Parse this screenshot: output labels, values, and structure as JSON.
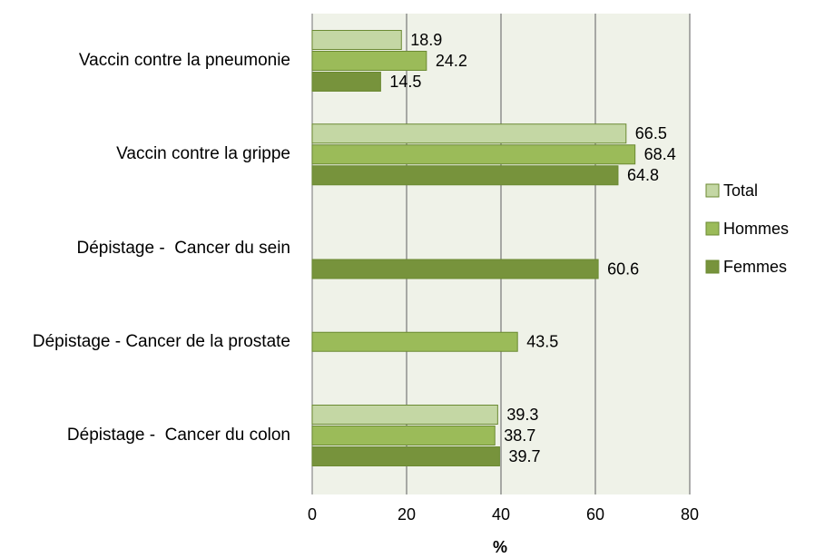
{
  "chart_data": {
    "type": "bar",
    "orientation": "horizontal",
    "x_label": "%",
    "categories": [
      "Vaccin contre la pneumonie",
      "Vaccin contre la grippe",
      "Dépistage -  Cancer du sein",
      "Dépistage - Cancer de la prostate",
      "Dépistage -  Cancer du colon"
    ],
    "series": [
      {
        "name": "Total",
        "color": "#c4d7a4",
        "values": [
          18.9,
          66.5,
          null,
          null,
          39.3
        ]
      },
      {
        "name": "Hommes",
        "color": "#9bbb59",
        "values": [
          24.2,
          68.4,
          null,
          43.5,
          38.7
        ]
      },
      {
        "name": "Femmes",
        "color": "#77933c",
        "values": [
          14.5,
          64.8,
          60.6,
          null,
          39.7
        ]
      }
    ],
    "xlim": [
      0,
      80
    ],
    "xticks": [
      0,
      20,
      40,
      60,
      80
    ],
    "grid": true,
    "legend": "right"
  }
}
